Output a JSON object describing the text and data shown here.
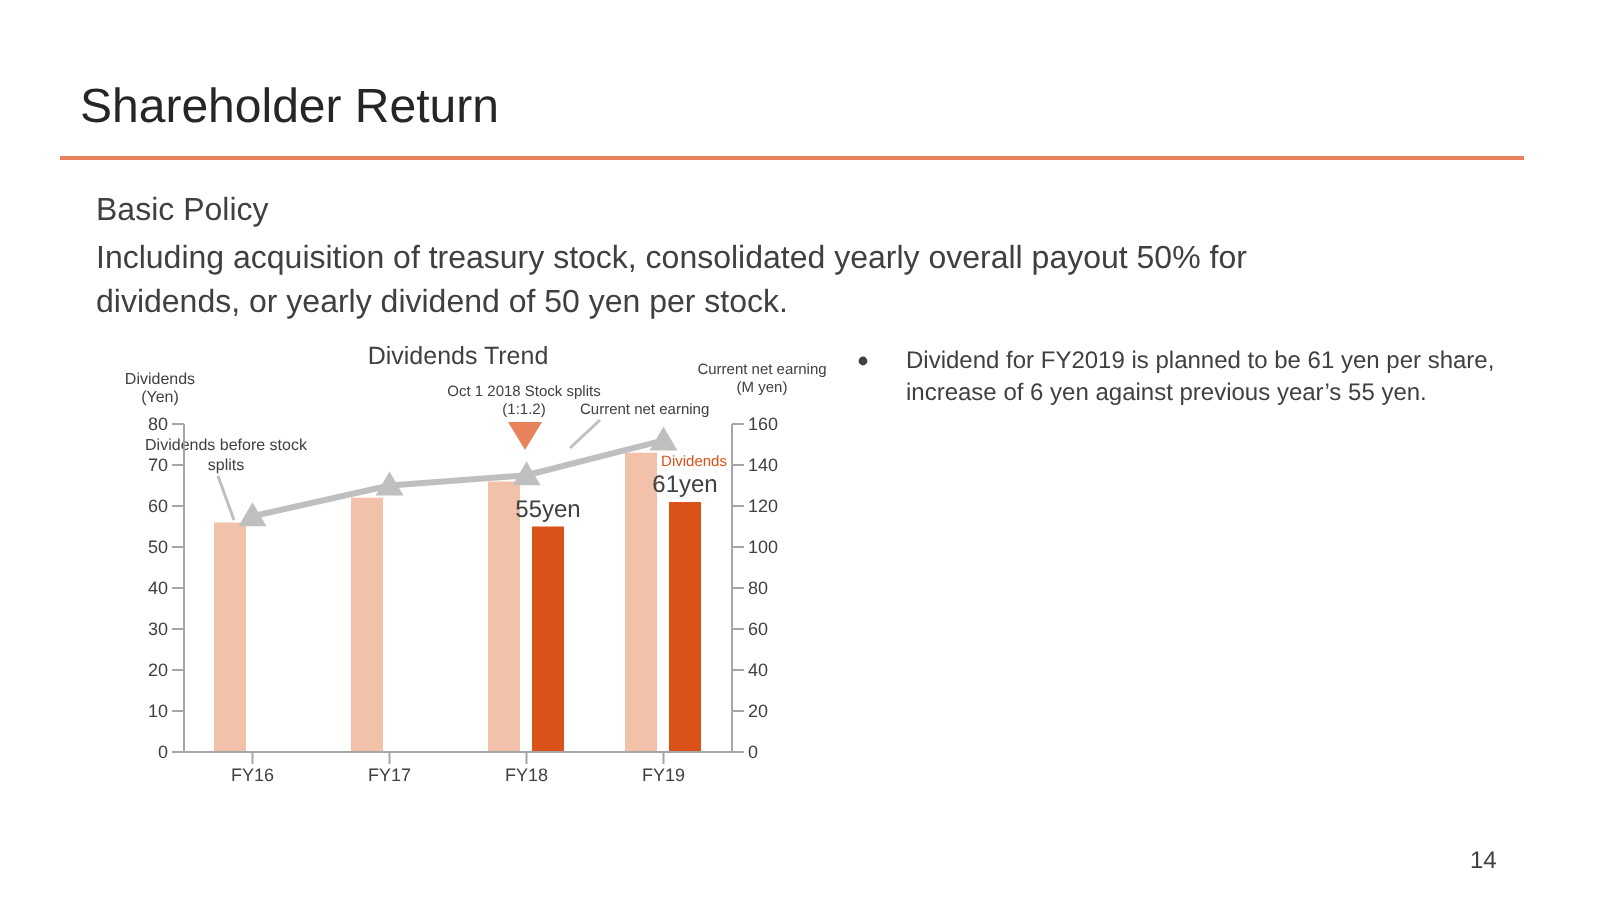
{
  "chart_data": {
    "type": "bar",
    "title": "Shareholder Return",
    "subtitle": "Dividends Trend",
    "ylabel": "Dividends (Yen)",
    "y2label": "Current net earning (M yen)",
    "categories": [
      "FY16",
      "FY17",
      "FY18",
      "FY19"
    ],
    "series": [
      {
        "name": "Dividends before stock splits",
        "color": "#f2c1aa",
        "values": [
          56,
          62,
          66,
          73
        ]
      },
      {
        "name": "Dividends",
        "color": "#db5219",
        "values": [
          null,
          null,
          55,
          61
        ],
        "value_labels": [
          null,
          null,
          "55yen",
          "61yen"
        ]
      },
      {
        "name": "Current net earning",
        "type": "line",
        "axis": "y2",
        "color": "#bfbfbf",
        "values": [
          115,
          130,
          135,
          152
        ],
        "marker": "triangle"
      }
    ],
    "ylim": [
      0,
      80
    ],
    "yticks": [
      0,
      10,
      20,
      30,
      40,
      50,
      60,
      70,
      80
    ],
    "y2lim": [
      0,
      160
    ],
    "y2ticks": [
      0,
      20,
      40,
      60,
      80,
      100,
      120,
      140,
      160
    ],
    "grid": false,
    "legend": false,
    "annotations": [
      "Basic Policy",
      "Including acquisition of treasury stock, consolidated yearly overall payout 50% for dividends, or yearly dividend of 50 yen per stock.",
      "Dividend for FY2019 is planned to be 61 yen per share, increase of 6 yen against previous year’s 55 yen.",
      "Oct 1 2018 Stock splits (1:1.2)",
      "14"
    ]
  }
}
